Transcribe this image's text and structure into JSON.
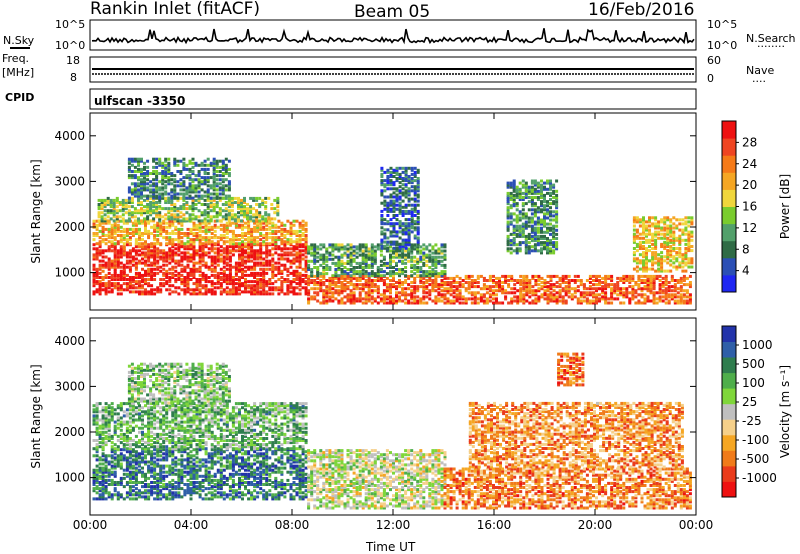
{
  "header": {
    "station": "Rankin Inlet (fitACF)",
    "beam": "Beam 05",
    "date": "16/Feb/2016"
  },
  "strips": {
    "nsky_label": "N.Sky",
    "nsearch_label": "N.Search",
    "nsearch_dots": "........",
    "nsky_ticks": [
      "10^5",
      "10^0"
    ],
    "nsearch_ticks": [
      "10^5",
      "10^0"
    ],
    "freq_label_1": "Freq.",
    "freq_label_2": "[MHz]",
    "freq_ticks": [
      "18",
      "8"
    ],
    "nave_label": "Nave",
    "nave_dots": "....",
    "nave_ticks": [
      "60",
      "0"
    ],
    "cpid_label": "CPID",
    "cpid_value": "ulfscan -3350"
  },
  "colors": {
    "background": "#ffffff",
    "axis": "#000000"
  },
  "chart_data": [
    {
      "type": "heatmap",
      "title": "",
      "xlabel": "Time UT",
      "ylabel": "Slant Range [km]",
      "x_ticks": [
        "00:00",
        "04:00",
        "08:00",
        "12:00",
        "16:00",
        "20:00",
        "00:00"
      ],
      "y_ticks": [
        "1000",
        "2000",
        "3000",
        "4000"
      ],
      "xlim_hours": [
        0,
        24
      ],
      "ylim_km": [
        180,
        4500
      ],
      "colorbar": {
        "label": "Power [dB]",
        "ticks": [
          "4",
          "8",
          "12",
          "16",
          "20",
          "24",
          "28"
        ],
        "range": [
          0,
          30
        ],
        "colors": [
          "#1f27f2",
          "#2b4fb5",
          "#2f6b45",
          "#52a06b",
          "#7acc2e",
          "#f0d63c",
          "#f5a623",
          "#f57a18",
          "#ef4522",
          "#ee1111"
        ]
      },
      "regions": [
        {
          "t0": 0.1,
          "t1": 8.6,
          "r0": 500,
          "r1": 1600,
          "level": 0.92
        },
        {
          "t0": 0.1,
          "t1": 8.6,
          "r0": 1600,
          "r1": 2100,
          "level": 0.65
        },
        {
          "t0": 0.3,
          "t1": 7.5,
          "r0": 2100,
          "r1": 2600,
          "level": 0.45
        },
        {
          "t0": 1.5,
          "t1": 5.5,
          "r0": 2600,
          "r1": 3500,
          "level": 0.28
        },
        {
          "t0": 8.6,
          "t1": 23.8,
          "r0": 300,
          "r1": 900,
          "level": 0.8
        },
        {
          "t0": 8.6,
          "t1": 14.0,
          "r0": 900,
          "r1": 1600,
          "level": 0.35
        },
        {
          "t0": 11.5,
          "t1": 13.0,
          "r0": 1500,
          "r1": 3300,
          "level": 0.2
        },
        {
          "t0": 16.5,
          "t1": 18.5,
          "r0": 1400,
          "r1": 3000,
          "level": 0.3
        },
        {
          "t0": 21.5,
          "t1": 23.8,
          "r0": 1000,
          "r1": 2200,
          "level": 0.6
        }
      ]
    },
    {
      "type": "heatmap",
      "title": "",
      "xlabel": "Time UT",
      "ylabel": "Slant Range [km]",
      "x_ticks": [
        "00:00",
        "04:00",
        "08:00",
        "12:00",
        "16:00",
        "20:00",
        "00:00"
      ],
      "y_ticks": [
        "1000",
        "2000",
        "3000",
        "4000"
      ],
      "xlim_hours": [
        0,
        24
      ],
      "ylim_km": [
        180,
        4500
      ],
      "colorbar": {
        "label": "Velocity [m s⁻¹]",
        "ticks": [
          "1000",
          "500",
          "100",
          "25",
          "-25",
          "-100",
          "-500",
          "-1000"
        ],
        "colors": [
          "#2233aa",
          "#2f5fa8",
          "#2f7d4e",
          "#4fae4b",
          "#7fd63a",
          "#bfbfbf",
          "#f5d08a",
          "#f5a623",
          "#f07b1a",
          "#ea3b1b",
          "#ee1111"
        ]
      },
      "regions": [
        {
          "t0": 0.1,
          "t1": 8.6,
          "r0": 500,
          "r1": 1600,
          "level": 0.2
        },
        {
          "t0": 0.1,
          "t1": 8.6,
          "r0": 1600,
          "r1": 2600,
          "level": 0.35
        },
        {
          "t0": 1.5,
          "t1": 5.5,
          "r0": 2600,
          "r1": 3500,
          "level": 0.4
        },
        {
          "t0": 8.6,
          "t1": 14.0,
          "r0": 300,
          "r1": 1600,
          "level": 0.5
        },
        {
          "t0": 14.0,
          "t1": 23.8,
          "r0": 300,
          "r1": 1200,
          "level": 0.75
        },
        {
          "t0": 15.0,
          "t1": 23.5,
          "r0": 1200,
          "r1": 2600,
          "level": 0.72
        },
        {
          "t0": 18.5,
          "t1": 19.5,
          "r0": 3000,
          "r1": 3700,
          "level": 0.78
        }
      ]
    }
  ]
}
